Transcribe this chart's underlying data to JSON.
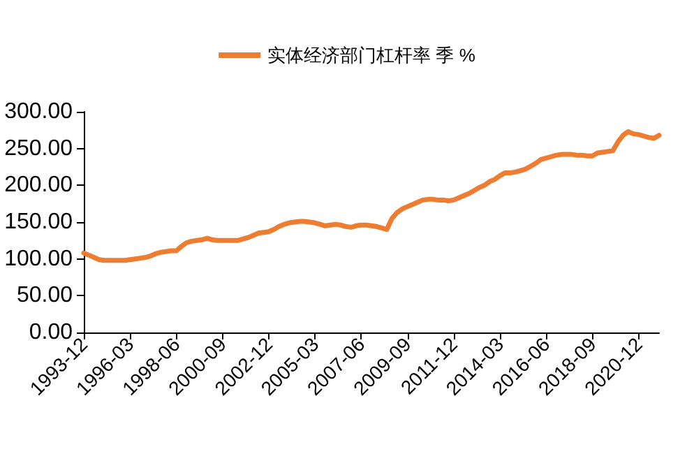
{
  "chart_data": {
    "type": "line",
    "categories": [
      "1993-12",
      null,
      null,
      null,
      null,
      null,
      null,
      null,
      null,
      "1996-03",
      null,
      null,
      null,
      null,
      null,
      null,
      null,
      null,
      "1998-06",
      null,
      null,
      null,
      null,
      null,
      null,
      null,
      null,
      "2000-09",
      null,
      null,
      null,
      null,
      null,
      null,
      null,
      null,
      "2002-12",
      null,
      null,
      null,
      null,
      null,
      null,
      null,
      null,
      "2005-03",
      null,
      null,
      null,
      null,
      null,
      null,
      null,
      null,
      "2007-06",
      null,
      null,
      null,
      null,
      null,
      null,
      null,
      null,
      "2009-09",
      null,
      null,
      null,
      null,
      null,
      null,
      null,
      null,
      "2011-12",
      null,
      null,
      null,
      null,
      null,
      null,
      null,
      null,
      "2014-03",
      null,
      null,
      null,
      null,
      null,
      null,
      null,
      null,
      "2016-06",
      null,
      null,
      null,
      null,
      null,
      null,
      null,
      null,
      "2018-09",
      null,
      null,
      null,
      null,
      null,
      null,
      null,
      null,
      "2020-12",
      null,
      null,
      null,
      null
    ],
    "series": [
      {
        "name": "实体经济部门杠杆率 季 %",
        "color": "#ed7d31",
        "values": [
          108,
          105,
          102,
          99,
          98,
          98,
          98,
          98,
          98,
          99,
          100,
          101,
          102,
          104,
          107,
          109,
          110,
          111,
          111,
          117,
          122,
          124,
          125,
          126,
          128,
          126,
          125,
          125,
          125,
          125,
          125,
          127,
          129,
          132,
          135,
          136,
          137,
          140,
          144,
          147,
          149,
          150,
          151,
          151,
          150,
          149,
          147,
          145,
          146,
          147,
          146,
          144,
          143,
          145,
          146,
          146,
          145,
          144,
          142,
          140,
          155,
          163,
          168,
          171,
          174,
          177,
          180,
          181,
          181,
          180,
          180,
          179,
          180,
          183,
          186,
          189,
          193,
          197,
          200,
          205,
          208,
          213,
          217,
          217,
          218,
          220,
          222,
          226,
          230,
          235,
          237,
          239,
          241,
          242,
          242,
          242,
          241,
          241,
          240,
          240,
          244,
          245,
          246,
          247,
          259,
          268,
          273,
          270,
          269,
          267,
          265,
          264,
          268
        ]
      }
    ],
    "ylim": [
      0,
      300
    ],
    "yticks": [
      {
        "value": 0,
        "label": "0.00"
      },
      {
        "value": 50,
        "label": "50.00"
      },
      {
        "value": 100,
        "label": "100.00"
      },
      {
        "value": 150,
        "label": "150.00"
      },
      {
        "value": 200,
        "label": "200.00"
      },
      {
        "value": 250,
        "label": "250.00"
      },
      {
        "value": 300,
        "label": "300.00"
      }
    ],
    "grid": false,
    "legend": "top",
    "marker": "none",
    "line_style": "solid"
  }
}
